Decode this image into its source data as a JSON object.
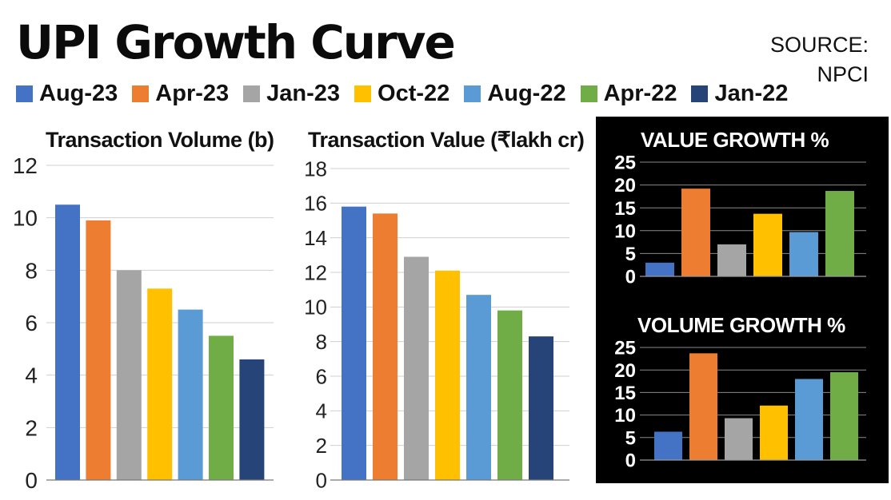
{
  "title": "UPI Growth Curve",
  "source": {
    "line1": "SOURCE:",
    "line2": "NPCI"
  },
  "legend": [
    {
      "label": "Aug-23",
      "color": "#4472c4"
    },
    {
      "label": "Apr-23",
      "color": "#ed7d31"
    },
    {
      "label": "Jan-23",
      "color": "#a5a5a5"
    },
    {
      "label": "Oct-22",
      "color": "#ffc000"
    },
    {
      "label": "Aug-22",
      "color": "#5b9bd5"
    },
    {
      "label": "Apr-22",
      "color": "#70ad47"
    },
    {
      "label": "Jan-22",
      "color": "#264478"
    }
  ],
  "chart_data": [
    {
      "id": "volume",
      "type": "bar",
      "title": "Transaction Volume (b)",
      "categories": [
        "Aug-23",
        "Apr-23",
        "Jan-23",
        "Oct-22",
        "Aug-22",
        "Apr-22",
        "Jan-22"
      ],
      "values": [
        10.5,
        9.9,
        8.0,
        7.3,
        6.5,
        5.5,
        4.6
      ],
      "ylim": [
        0,
        12
      ],
      "yticks": [
        0,
        2,
        4,
        6,
        8,
        10,
        12
      ],
      "grid": true
    },
    {
      "id": "value",
      "type": "bar",
      "title": "Transaction Value (₹lakh cr)",
      "categories": [
        "Aug-23",
        "Apr-23",
        "Jan-23",
        "Oct-22",
        "Aug-22",
        "Apr-22",
        "Jan-22"
      ],
      "values": [
        15.8,
        15.4,
        12.9,
        12.1,
        10.7,
        9.8,
        8.3
      ],
      "ylim": [
        0,
        18
      ],
      "yticks": [
        0,
        2,
        4,
        6,
        8,
        10,
        12,
        14,
        16,
        18
      ],
      "grid": true
    },
    {
      "id": "value_growth",
      "type": "bar",
      "title": "VALUE GROWTH %",
      "categories": [
        "Aug-23",
        "Apr-23",
        "Jan-23",
        "Oct-22",
        "Aug-22",
        "Apr-22"
      ],
      "values": [
        3,
        19.2,
        7,
        13.7,
        9.7,
        18.7
      ],
      "ylim": [
        0,
        25
      ],
      "yticks": [
        0,
        5,
        10,
        15,
        20,
        25
      ],
      "grid": true
    },
    {
      "id": "volume_growth",
      "type": "bar",
      "title": "VOLUME GROWTH %",
      "categories": [
        "Aug-23",
        "Apr-23",
        "Jan-23",
        "Oct-22",
        "Aug-22",
        "Apr-22"
      ],
      "values": [
        6.3,
        23.7,
        9.3,
        12.1,
        18,
        19.5
      ],
      "ylim": [
        0,
        25
      ],
      "yticks": [
        0,
        5,
        10,
        15,
        20,
        25
      ],
      "grid": true
    }
  ]
}
